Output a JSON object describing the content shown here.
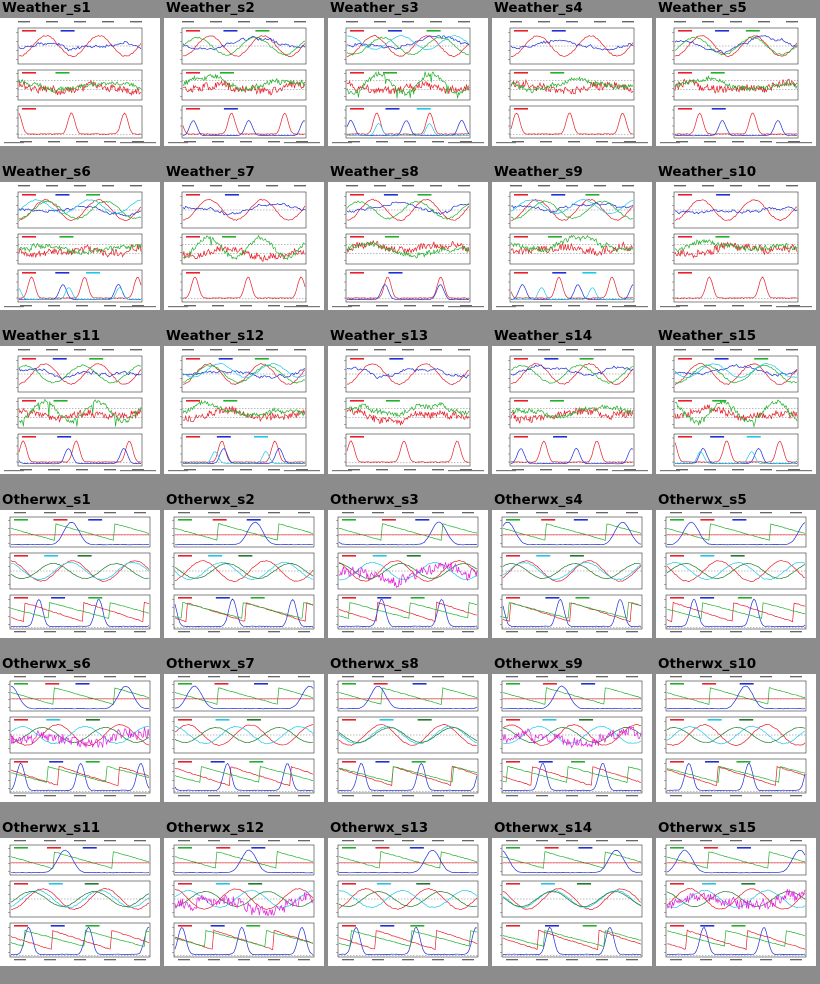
{
  "gallery": {
    "rows": [
      [
        "Weather_s1",
        "Weather_s2",
        "Weather_s3",
        "Weather_s4",
        "Weather_s5"
      ],
      [
        "Weather_s6",
        "Weather_s7",
        "Weather_s8",
        "Weather_s9",
        "Weather_s10"
      ],
      [
        "Weather_s11",
        "Weather_s12",
        "Weather_s13",
        "Weather_s14",
        "Weather_s15"
      ],
      [
        "Otherwx_s1",
        "Otherwx_s2",
        "Otherwx_s3",
        "Otherwx_s4",
        "Otherwx_s5"
      ],
      [
        "Otherwx_s6",
        "Otherwx_s7",
        "Otherwx_s8",
        "Otherwx_s9",
        "Otherwx_s10"
      ],
      [
        "Otherwx_s11",
        "Otherwx_s12",
        "Otherwx_s13",
        "Otherwx_s14",
        "Otherwx_s15"
      ]
    ]
  },
  "colors": {
    "background": "#8c8c8c",
    "panel": "#ffffff",
    "red": "#e8202a",
    "green": "#22b02a",
    "blue": "#2030d8",
    "cyan": "#20c8e8",
    "magenta": "#e020e0",
    "darkgreen": "#207a2a"
  },
  "chart_data": {
    "type": "line",
    "description_of_series": "small-multiple time-series panels, three stacked sub-plots per thumbnail"
  }
}
